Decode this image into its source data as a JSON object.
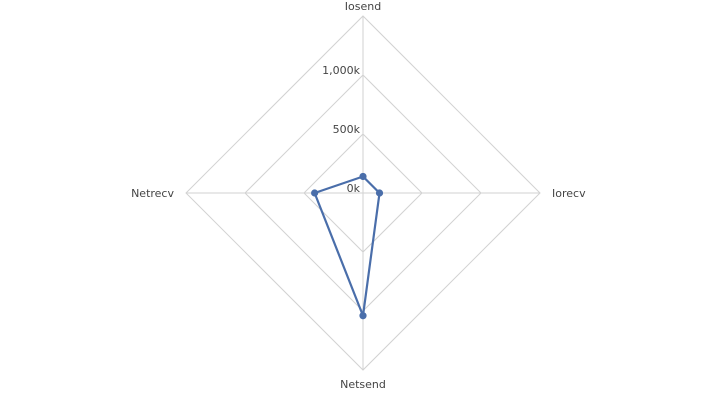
{
  "chart_data": {
    "type": "radar",
    "title": "",
    "axes": [
      "Iosend",
      "Iorecv",
      "Netsend",
      "Netrecv"
    ],
    "rlim": [
      0,
      1500000
    ],
    "ticks": [
      {
        "value": 0,
        "label": "0k"
      },
      {
        "value": 500000,
        "label": "500k"
      },
      {
        "value": 1000000,
        "label": "1,000k"
      }
    ],
    "grid": true,
    "legend": "none",
    "series": [
      {
        "values": [
          140000,
          140000,
          1040000,
          410000
        ],
        "color": "#4a6eaa"
      }
    ]
  }
}
